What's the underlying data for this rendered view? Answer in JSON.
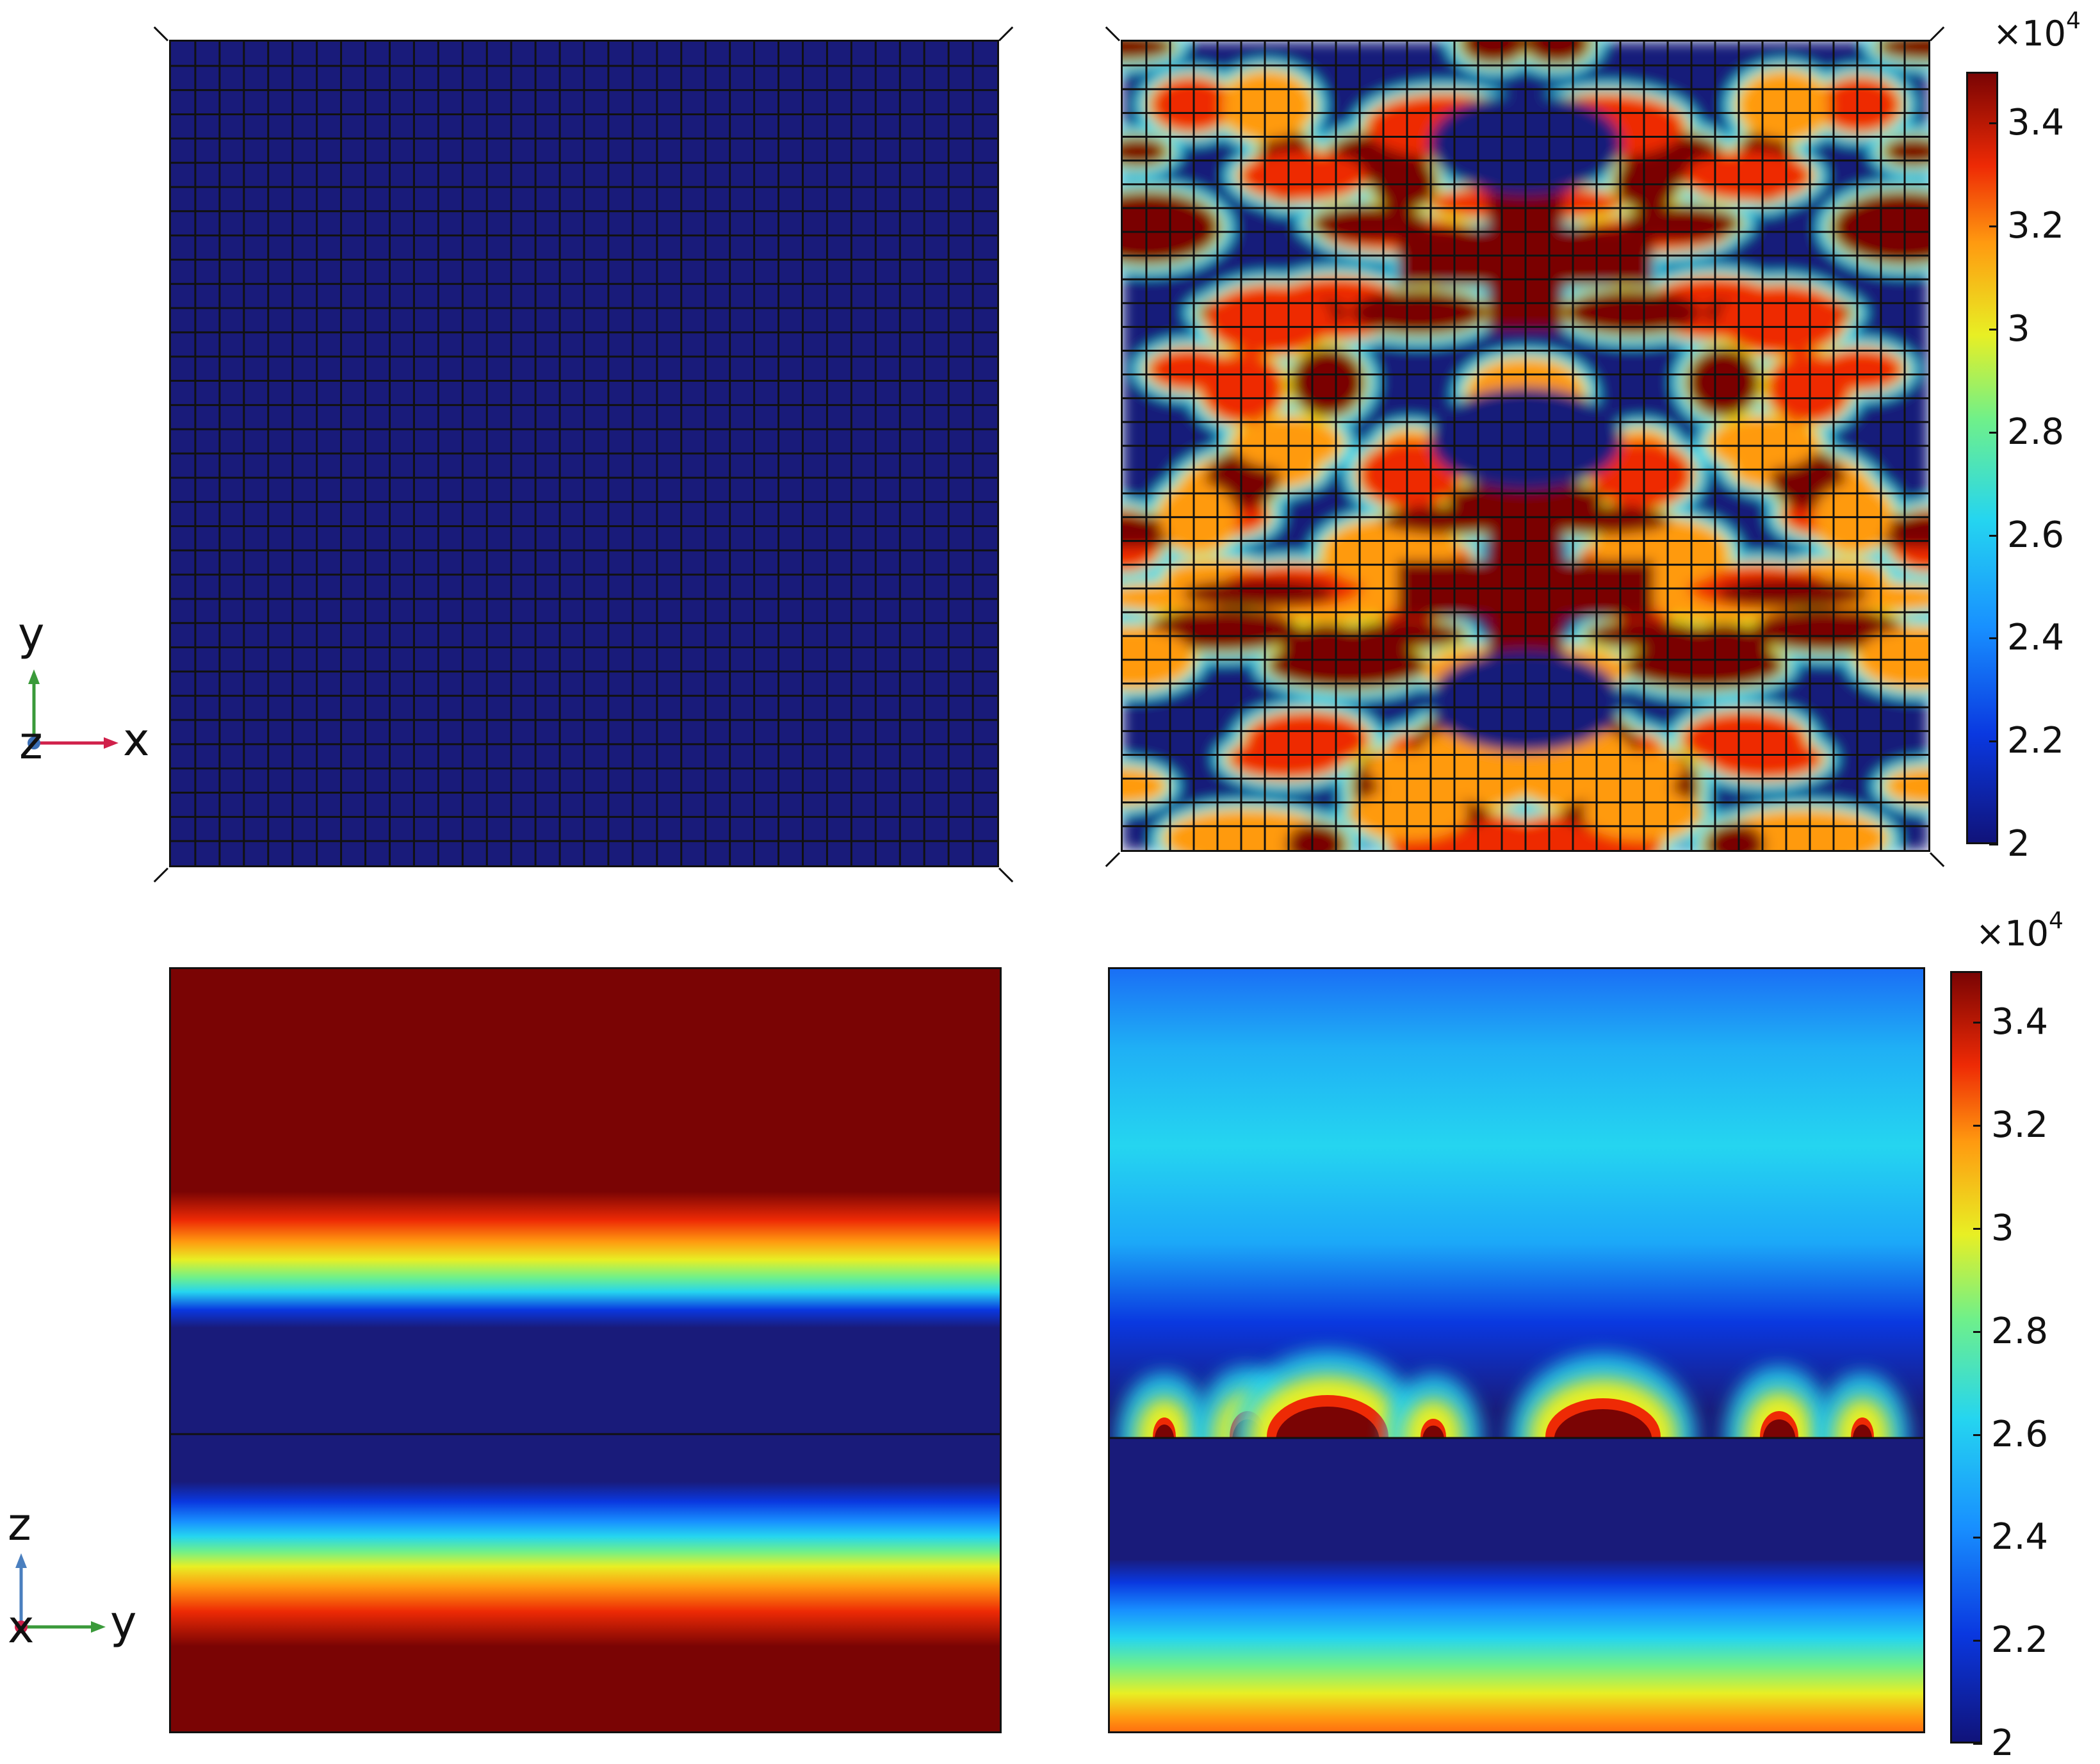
{
  "chart_data": [
    {
      "type": "heatmap",
      "view": "xy-top",
      "description_values": "uniform field at colorbar minimum",
      "mesh_columns": 34,
      "mesh_rows": 34,
      "uniform_value": 2.0,
      "axes_triad": {
        "horizontal": "x",
        "vertical": "y",
        "out_of_plane": "z"
      }
    },
    {
      "type": "heatmap",
      "view": "xy-top",
      "mesh_columns": 34,
      "mesh_rows": 34,
      "colormap": "jet",
      "clim": [
        2,
        3.5
      ],
      "colorbar": {
        "ticks": [
          "2",
          "2.2",
          "2.4",
          "2.6",
          "2.8",
          "3",
          "3.2",
          "3.4"
        ],
        "exponent_base": "×10",
        "exponent": "4"
      }
    },
    {
      "type": "heatmap",
      "view": "yz-section",
      "colormap": "jet",
      "interface_line": 0.39,
      "axes_triad": {
        "horizontal": "y",
        "vertical": "z",
        "out_of_plane": "x"
      }
    },
    {
      "type": "heatmap",
      "view": "yz-section",
      "colormap": "jet",
      "clim": [
        2,
        3.5
      ],
      "interface_line": 0.38,
      "colorbar": {
        "ticks": [
          "2",
          "2.2",
          "2.4",
          "2.6",
          "2.8",
          "3",
          "3.2",
          "3.4"
        ],
        "exponent_base": "×10",
        "exponent": "4"
      }
    }
  ],
  "colors": {
    "jet_min": "#191b7a",
    "jet_low": "#0a38e0",
    "jet_mid_low": "#1890ff",
    "jet_cyan": "#25d5f0",
    "jet_green": "#6ff08a",
    "jet_yellow": "#e8ef24",
    "jet_orange": "#ff9a10",
    "jet_red": "#ee2a05",
    "jet_max": "#7a0404",
    "mesh_line": "#111111"
  },
  "labels": {
    "cb1_exp_base": "×10",
    "cb1_exp": "4",
    "cb2_exp_base": "×10",
    "cb2_exp": "4",
    "triad1_h": "x",
    "triad1_v": "y",
    "triad1_o": "z",
    "triad2_h": "y",
    "triad2_v": "z",
    "triad2_o": "x"
  }
}
